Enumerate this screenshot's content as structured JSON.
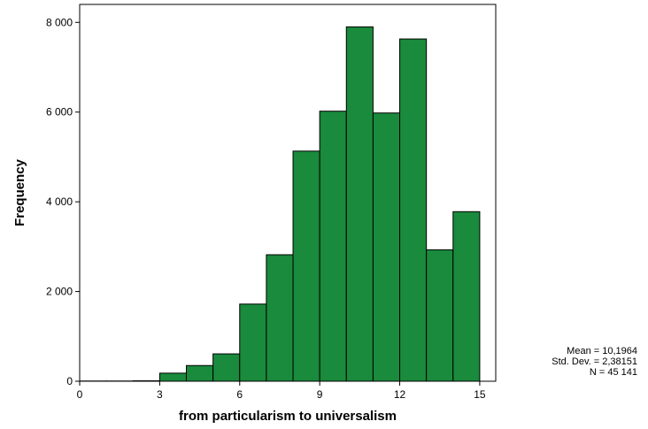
{
  "chart_data": {
    "type": "bar",
    "subtype": "histogram",
    "bin_width": 1,
    "bin_starts": [
      0,
      1,
      2,
      3,
      4,
      5,
      6,
      7,
      8,
      9,
      10,
      11,
      12,
      13,
      14
    ],
    "values": [
      5,
      5,
      10,
      180,
      350,
      610,
      1720,
      2820,
      5130,
      6020,
      7900,
      5980,
      7630,
      2930,
      3780
    ],
    "xlabel": "from particularism to universalism",
    "ylabel": "Frequency",
    "xlim": [
      0,
      15.6
    ],
    "ylim": [
      0,
      8400
    ],
    "xticks": [
      0,
      3,
      6,
      9,
      12,
      15
    ],
    "xtick_labels": [
      "0",
      "3",
      "6",
      "9",
      "12",
      "15"
    ],
    "yticks": [
      0,
      2000,
      4000,
      6000,
      8000
    ],
    "ytick_labels": [
      "0",
      "2 000",
      "4 000",
      "6 000",
      "8 000"
    ],
    "grid": false,
    "bar_color": "#1a8a3c",
    "bar_edge_color": "#000000",
    "stats": {
      "mean": "Mean = 10,1964",
      "std": "Std. Dev. = 2,38151",
      "n": "N = 45 141"
    }
  }
}
